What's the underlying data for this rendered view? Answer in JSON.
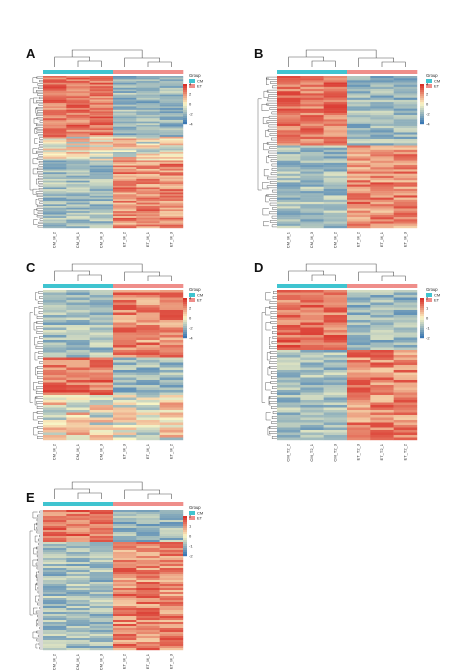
{
  "colors": {
    "group_cm": "#3fc4d0",
    "group_et": "#ef8e8a",
    "low": "#3a78b4",
    "mid": "#fbf6c5",
    "high": "#d9312a",
    "tree": "#555555",
    "row_tree": "#222222"
  },
  "legend": {
    "group_title": "Group",
    "groups": [
      "CM",
      "ET"
    ]
  },
  "chart_data": [
    {
      "type": "heatmap",
      "panel": "A",
      "samples": [
        "CM_M_2",
        "CM_M_1",
        "CM_M_3",
        "ET_M_2",
        "ET_M_1",
        "ET_M_3"
      ],
      "groups": [
        "CM",
        "CM",
        "CM",
        "ET",
        "ET",
        "ET"
      ],
      "scale_ticks": [
        "4",
        "2",
        "0",
        "-2",
        "-4"
      ],
      "row_pattern": [
        [
          0.0,
          0.4,
          "up_cm"
        ],
        [
          0.4,
          0.55,
          "mixed"
        ],
        [
          0.55,
          1.0,
          "up_et"
        ]
      ],
      "rows": 90
    },
    {
      "type": "heatmap",
      "panel": "B",
      "samples": [
        "CM_M_1",
        "CM_M_3",
        "CM_M_2",
        "ET_M_2",
        "ET_M_1",
        "ET_M_3"
      ],
      "groups": [
        "CM",
        "CM",
        "CM",
        "ET",
        "ET",
        "ET"
      ],
      "scale_ticks": [
        "4",
        "2",
        "0",
        "-2",
        "-4"
      ],
      "row_pattern": [
        [
          0.0,
          0.45,
          "up_cm"
        ],
        [
          0.45,
          1.0,
          "up_et"
        ]
      ],
      "rows": 70
    },
    {
      "type": "heatmap",
      "panel": "C",
      "samples": [
        "CM_M_2",
        "CM_M_1",
        "CM_M_3",
        "ET_M_3",
        "ET_M_1",
        "ET_M_2"
      ],
      "groups": [
        "CM",
        "CM",
        "CM",
        "ET",
        "ET",
        "ET"
      ],
      "scale_ticks": [
        "4",
        "2",
        "0",
        "-2",
        "-4"
      ],
      "row_pattern": [
        [
          0.0,
          0.45,
          "up_et"
        ],
        [
          0.45,
          0.7,
          "up_cm"
        ],
        [
          0.7,
          1.0,
          "mixed"
        ]
      ],
      "rows": 60
    },
    {
      "type": "heatmap",
      "panel": "D",
      "samples": [
        "CM_T2_2",
        "CM_T2_1",
        "CM_T2_3",
        "ET_T2_3",
        "ET_T2_1",
        "ET_T2_2"
      ],
      "groups": [
        "CM",
        "CM",
        "CM",
        "ET",
        "ET",
        "ET"
      ],
      "scale_ticks": [
        "2",
        "1",
        "0",
        "-1",
        "-2"
      ],
      "row_pattern": [
        [
          0.0,
          0.4,
          "up_cm"
        ],
        [
          0.4,
          1.0,
          "up_et"
        ]
      ],
      "rows": 60
    },
    {
      "type": "heatmap",
      "panel": "E",
      "samples": [
        "CM_M_2",
        "CM_M_1",
        "CM_M_3",
        "ET_M_2",
        "ET_M_1",
        "ET_M_3"
      ],
      "groups": [
        "CM",
        "CM",
        "CM",
        "ET",
        "ET",
        "ET"
      ],
      "scale_ticks": [
        "2",
        "1",
        "0",
        "-1",
        "-2"
      ],
      "row_pattern": [
        [
          0.0,
          0.22,
          "up_cm"
        ],
        [
          0.22,
          1.0,
          "up_et"
        ]
      ],
      "rows": 70
    }
  ]
}
